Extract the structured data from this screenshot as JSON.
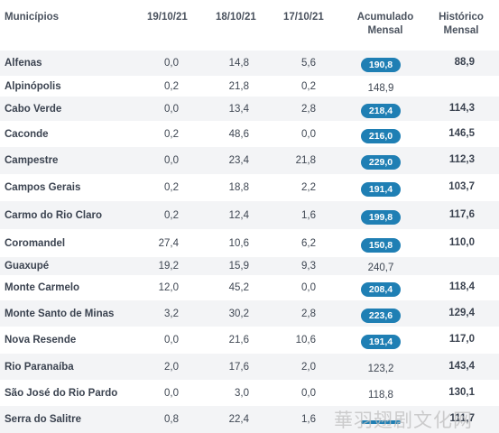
{
  "headers": {
    "municipios": "Municípios",
    "d1": "19/10/21",
    "d2": "18/10/21",
    "d3": "17/10/21",
    "acumulado_l1": "Acumulado",
    "acumulado_l2": "Mensal",
    "historico_l1": "Histórico",
    "historico_l2": "Mensal"
  },
  "badge_color": "#1f7fb4",
  "rows": [
    {
      "name": "Alfenas",
      "d1": "0,0",
      "d2": "14,8",
      "d3": "5,6",
      "acc": "190,8",
      "acc_badge": true,
      "hist": "88,9"
    },
    {
      "name": "Alpinópolis",
      "d1": "0,2",
      "d2": "21,8",
      "d3": "0,2",
      "acc": "148,9",
      "acc_badge": false,
      "hist": ""
    },
    {
      "name": "Cabo Verde",
      "d1": "0,0",
      "d2": "13,4",
      "d3": "2,8",
      "acc": "218,4",
      "acc_badge": true,
      "hist": "114,3"
    },
    {
      "name": "Caconde",
      "d1": "0,2",
      "d2": "48,6",
      "d3": "0,0",
      "acc": "216,0",
      "acc_badge": true,
      "hist": "146,5"
    },
    {
      "name": "Campestre",
      "d1": "0,0",
      "d2": "23,4",
      "d3": "21,8",
      "acc": "229,0",
      "acc_badge": true,
      "hist": "112,3"
    },
    {
      "name": "Campos Gerais",
      "d1": "0,2",
      "d2": "18,8",
      "d3": "2,2",
      "acc": "191,4",
      "acc_badge": true,
      "hist": "103,7"
    },
    {
      "name": "Carmo do Rio Claro",
      "d1": "0,2",
      "d2": "12,4",
      "d3": "1,6",
      "acc": "199,8",
      "acc_badge": true,
      "hist": "117,6"
    },
    {
      "name": "Coromandel",
      "d1": "27,4",
      "d2": "10,6",
      "d3": "6,2",
      "acc": "150,8",
      "acc_badge": true,
      "hist": "110,0"
    },
    {
      "name": "Guaxupé",
      "d1": "19,2",
      "d2": "15,9",
      "d3": "9,3",
      "acc": "240,7",
      "acc_badge": false,
      "hist": ""
    },
    {
      "name": "Monte Carmelo",
      "d1": "12,0",
      "d2": "45,2",
      "d3": "0,0",
      "acc": "208,4",
      "acc_badge": true,
      "hist": "118,4"
    },
    {
      "name": "Monte Santo de Minas",
      "d1": "3,2",
      "d2": "30,2",
      "d3": "2,8",
      "acc": "223,6",
      "acc_badge": true,
      "hist": "129,4"
    },
    {
      "name": "Nova Resende",
      "d1": "0,0",
      "d2": "21,6",
      "d3": "10,6",
      "acc": "191,4",
      "acc_badge": true,
      "hist": "117,0"
    },
    {
      "name": "Rio Paranaíba",
      "d1": "2,0",
      "d2": "17,6",
      "d3": "2,0",
      "acc": "123,2",
      "acc_badge": false,
      "hist": "143,4"
    },
    {
      "name": "São José do Rio Pardo",
      "d1": "0,0",
      "d2": "3,0",
      "d3": "0,0",
      "acc": "118,8",
      "acc_badge": false,
      "hist": "130,1"
    },
    {
      "name": "Serra do Salitre",
      "d1": "0,8",
      "d2": "22,4",
      "d3": "1,6",
      "acc": "",
      "acc_badge": true,
      "hist": "111,7"
    }
  ],
  "watermark": "華羽翅剧文化网"
}
